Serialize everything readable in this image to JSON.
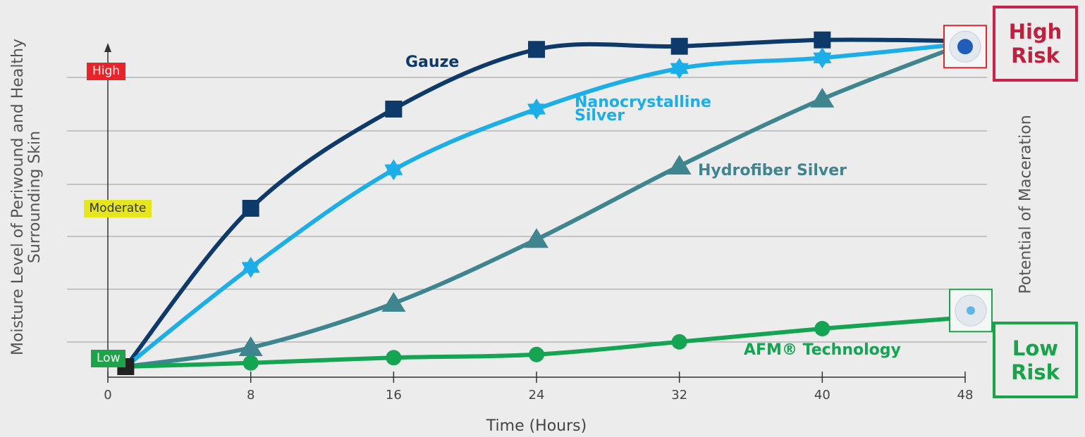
{
  "chart_data": {
    "type": "line",
    "y_label": "Moisture Level of Periwound and Healthy Surrounding Skin",
    "x_label": "Time (Hours)",
    "right_label": "Potential of Maceration",
    "high_risk_label": "High Risk",
    "low_risk_label": "Low Risk",
    "x": [
      1,
      8,
      16,
      24,
      32,
      40,
      48
    ],
    "xlim": [
      0,
      48
    ],
    "xticks": [
      0,
      8,
      16,
      24,
      32,
      40,
      48
    ],
    "ylim": [
      0,
      6.5
    ],
    "yticks": [
      {
        "value": 0.35,
        "label": "Low"
      },
      {
        "value": 3.2,
        "label": "Moderate"
      },
      {
        "value": 5.8,
        "label": "High"
      }
    ],
    "ytick_colors": [
      "#1fa34a",
      "#e6e61c",
      "#e8242b"
    ],
    "ytick_text_colors": [
      "#ffffff",
      "#333333",
      "#ffffff"
    ],
    "grid": true,
    "series": [
      {
        "name": "Gauze",
        "color": "#0e3a6b",
        "marker": "square",
        "values": [
          0.2,
          3.2,
          5.08,
          6.21,
          6.27,
          6.39,
          6.37
        ]
      },
      {
        "name": "Nanocrystalline Silver",
        "color": "#1caee8",
        "marker": "star",
        "values": [
          0.2,
          2.08,
          3.93,
          5.08,
          5.85,
          6.05,
          6.32
        ]
      },
      {
        "name": "Hydrofiber Silver",
        "color": "#3f8590",
        "marker": "triangle",
        "values": [
          0.2,
          0.56,
          1.4,
          2.61,
          4.0,
          5.27,
          6.32
        ]
      },
      {
        "name": "AFM® Technology",
        "color": "#14a452",
        "marker": "circle",
        "values": [
          0.2,
          0.27,
          0.37,
          0.43,
          0.67,
          0.92,
          1.13
        ]
      }
    ]
  }
}
